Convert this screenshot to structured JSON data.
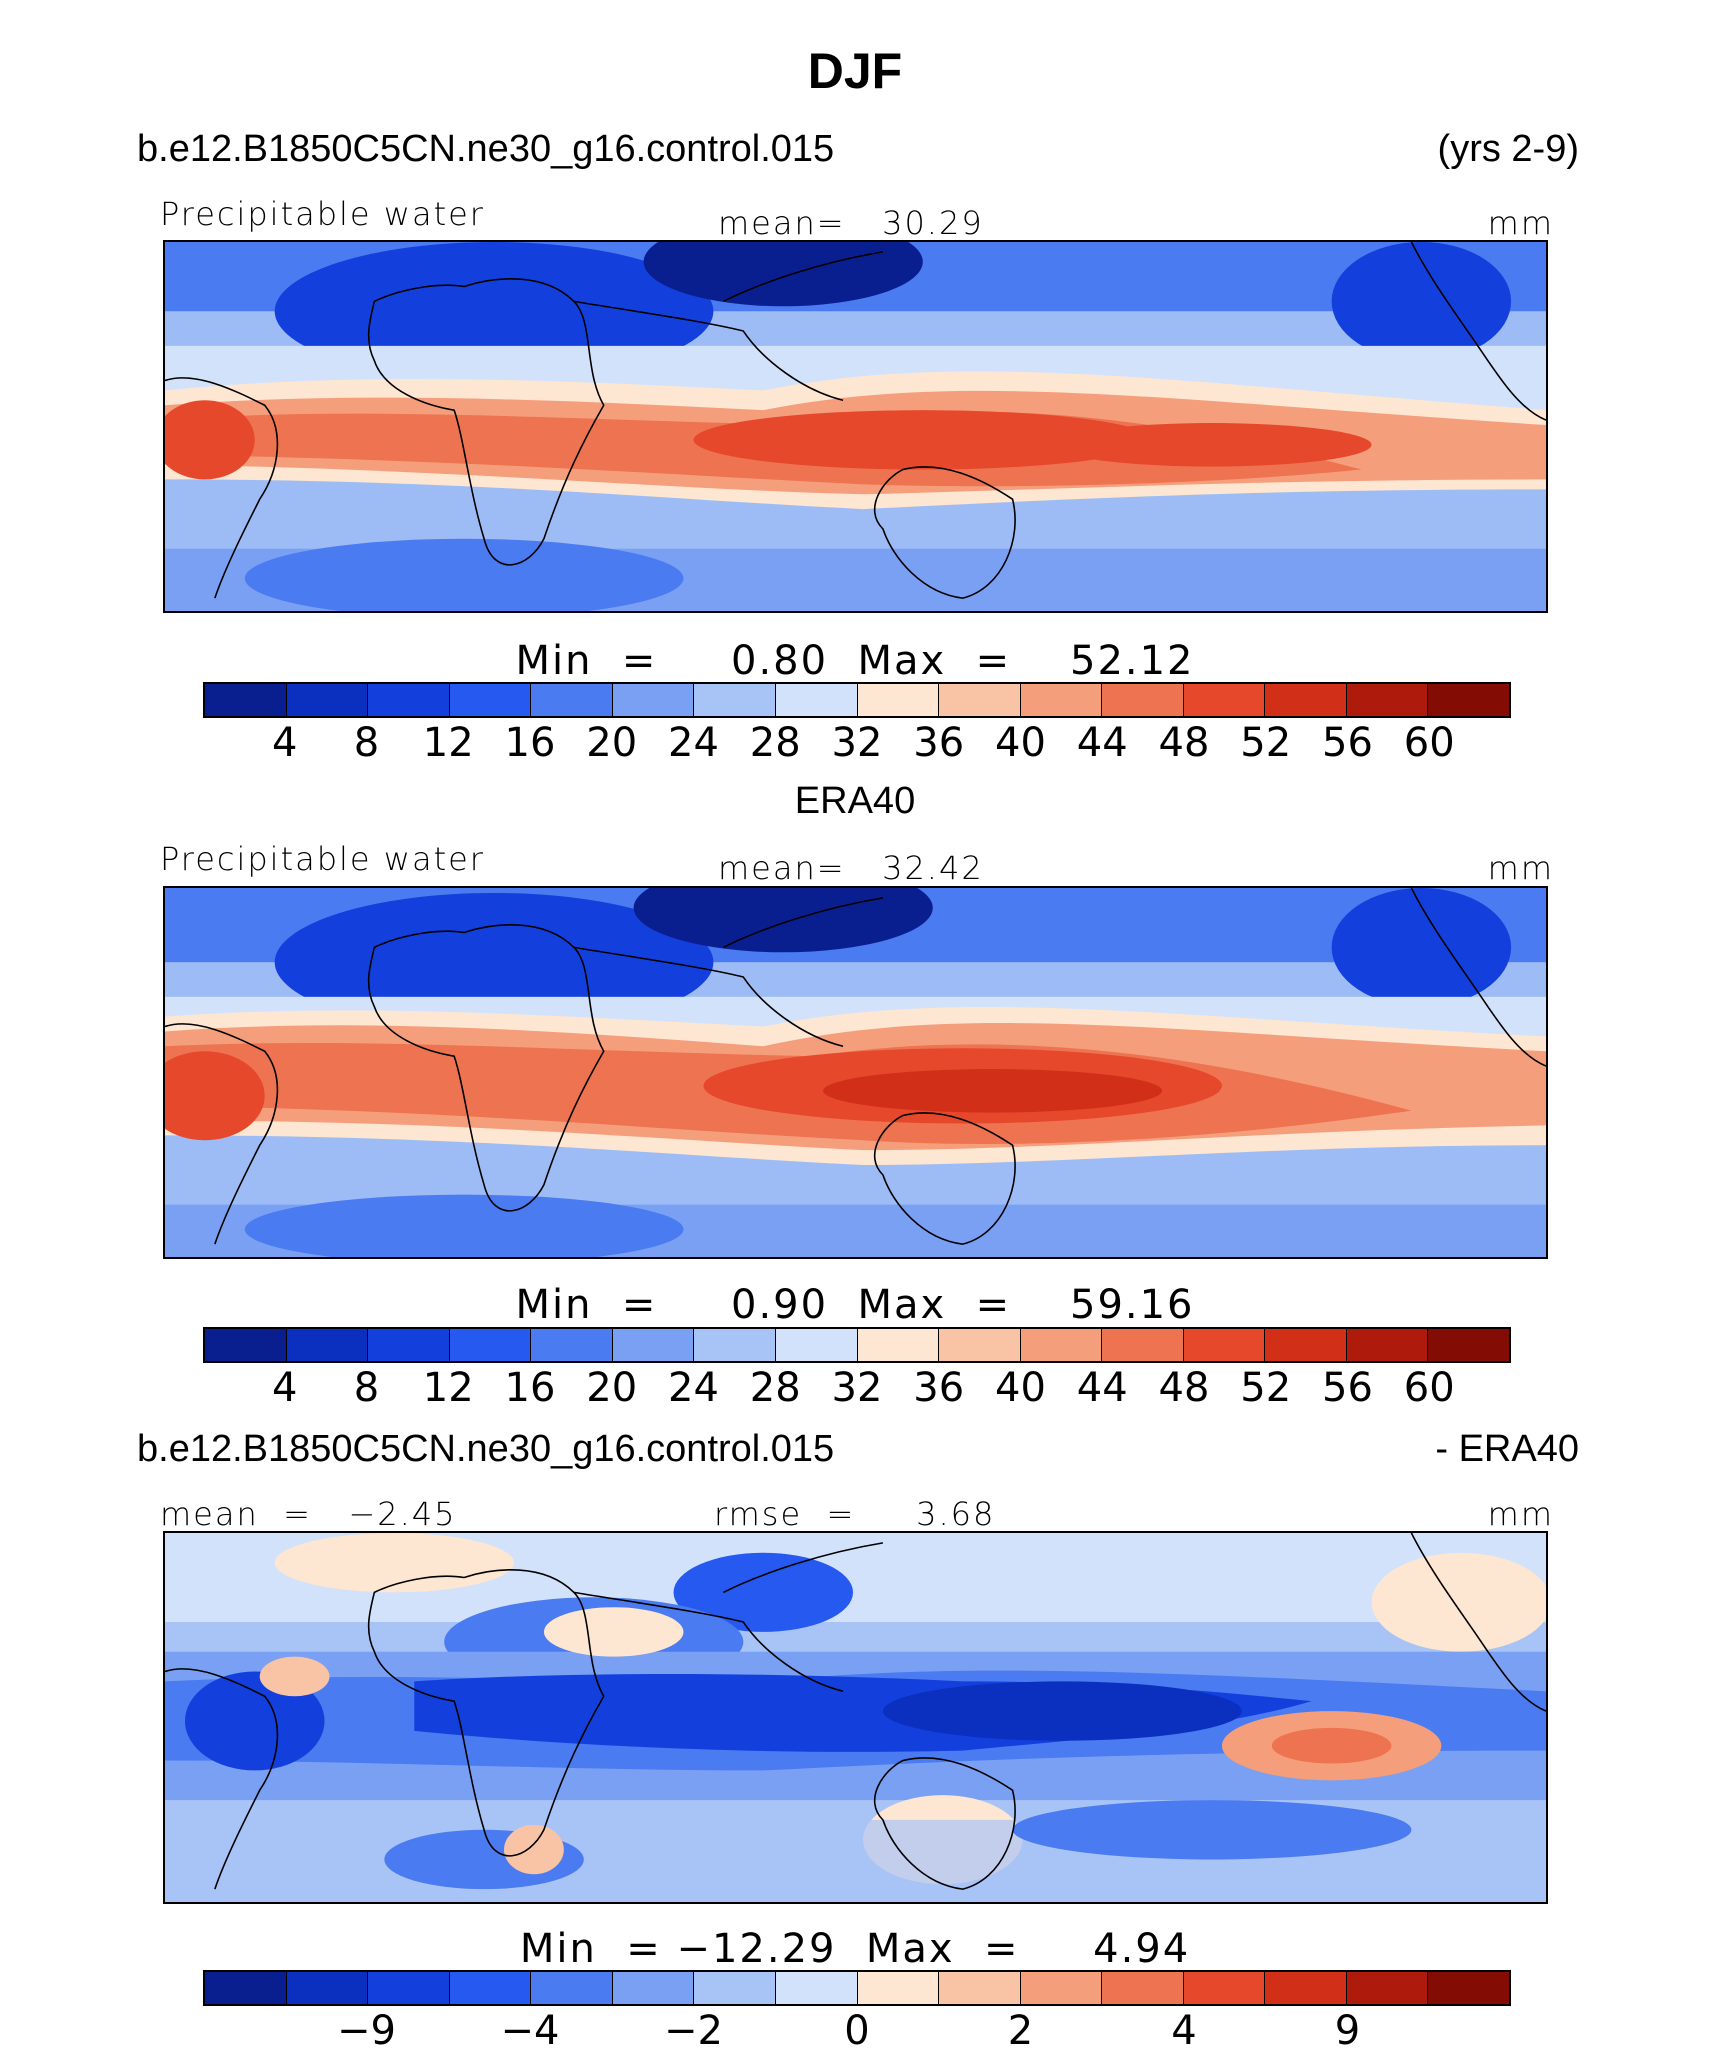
{
  "title": "DJF",
  "panel1": {
    "case": "b.e12.B1850C5CN.ne30_g16.control.015",
    "years": "(yrs 2-9)",
    "varname": "Precipitable water",
    "mean": "mean=   30.29",
    "units": "mm",
    "stats": "Min  =     0.80  Max  =    52.12"
  },
  "panel2": {
    "label": "ERA40",
    "varname": "Precipitable water",
    "mean": "mean=   32.42",
    "units": "mm",
    "stats": "Min  =     0.90  Max  =    59.16"
  },
  "panel3": {
    "case": "b.e12.B1850C5CN.ne30_g16.control.015",
    "suffix": "- ERA40",
    "mean": "mean  =   −2.45",
    "rmse": "rmse  =     3.68",
    "units": "mm",
    "stats": "Min  = −12.29  Max  =     4.94"
  },
  "colorbar_abs": {
    "colors": [
      "#0a1f8f",
      "#0b2fbf",
      "#1340dc",
      "#2559ef",
      "#4a7bf0",
      "#7aa0f3",
      "#a8c3f6",
      "#d2e2fa",
      "#fde6d2",
      "#f9c4a6",
      "#f59e7c",
      "#ee7350",
      "#e6482c",
      "#d12f17",
      "#ae1a0c",
      "#830c05"
    ],
    "ticks": [
      "4",
      "8",
      "12",
      "16",
      "20",
      "24",
      "28",
      "32",
      "36",
      "40",
      "44",
      "48",
      "52",
      "56",
      "60"
    ]
  },
  "colorbar_diff": {
    "colors": [
      "#0a1f8f",
      "#0b2fbf",
      "#1340dc",
      "#2559ef",
      "#4a7bf0",
      "#7aa0f3",
      "#a8c3f6",
      "#d2e2fa",
      "#fde6d2",
      "#f9c4a6",
      "#f59e7c",
      "#ee7350",
      "#e6482c",
      "#d12f17",
      "#ae1a0c",
      "#830c05"
    ],
    "ticks": [
      {
        "label": "−9",
        "pos": 2
      },
      {
        "label": "−4",
        "pos": 4
      },
      {
        "label": "−2",
        "pos": 6
      },
      {
        "label": "0",
        "pos": 8
      },
      {
        "label": "2",
        "pos": 10
      },
      {
        "label": "4",
        "pos": 12
      },
      {
        "label": "9",
        "pos": 14
      }
    ]
  }
}
